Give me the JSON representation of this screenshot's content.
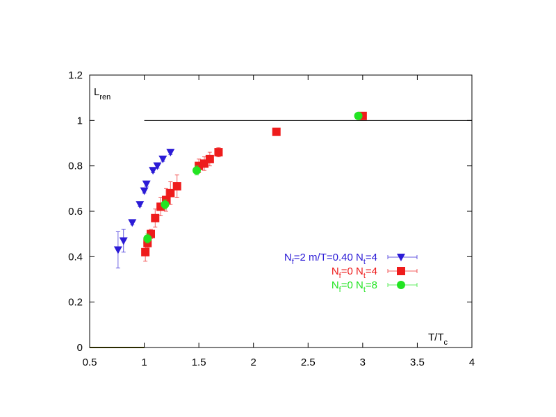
{
  "chart_data": {
    "type": "scatter",
    "xlabel": "T/T",
    "xlabel_sub": "c",
    "ylabel": "L",
    "ylabel_sub": "ren",
    "xlim": [
      0.5,
      4
    ],
    "ylim": [
      0,
      1.2
    ],
    "x_ticks": [
      "0.5",
      "1",
      "1.5",
      "2",
      "2.5",
      "3",
      "3.5",
      "4"
    ],
    "x_tick_values": [
      0.5,
      1,
      1.5,
      2,
      2.5,
      3,
      3.5,
      4
    ],
    "y_ticks": [
      "0",
      "0.2",
      "0.4",
      "0.6",
      "0.8",
      "1",
      "1.2"
    ],
    "y_tick_values": [
      0,
      0.2,
      0.4,
      0.6,
      0.8,
      1.0,
      1.2
    ],
    "reference_lines": [
      {
        "y": 1.0,
        "x_from": 1.0,
        "x_to": 4.0,
        "color": "#000000"
      },
      {
        "y": 0.0,
        "x_from": 0.5,
        "x_to": 1.0,
        "color": "#555500"
      }
    ],
    "legend_position": "center-right",
    "grid": false,
    "series": [
      {
        "legend_parts": [
          [
            "N",
            "f",
            "=2  m/T=0.40  N",
            "t",
            "=4"
          ]
        ],
        "color": "#2b1bd6",
        "marker": "triangle-down",
        "points": [
          {
            "x": 0.76,
            "y": 0.43,
            "err": 0.08
          },
          {
            "x": 0.81,
            "y": 0.47,
            "err": 0.05
          },
          {
            "x": 0.89,
            "y": 0.55,
            "err": 0.01
          },
          {
            "x": 0.96,
            "y": 0.63,
            "err": 0.01
          },
          {
            "x": 1.0,
            "y": 0.69,
            "err": 0.01
          },
          {
            "x": 1.02,
            "y": 0.72,
            "err": 0.01
          },
          {
            "x": 1.08,
            "y": 0.78,
            "err": 0.01
          },
          {
            "x": 1.12,
            "y": 0.8,
            "err": 0.01
          },
          {
            "x": 1.17,
            "y": 0.83,
            "err": 0.01
          },
          {
            "x": 1.24,
            "y": 0.86,
            "err": 0.01
          }
        ]
      },
      {
        "legend_parts": [
          [
            "N",
            "f",
            "=0  N",
            "t",
            "=4"
          ]
        ],
        "color": "#ee1c1c",
        "marker": "square",
        "points": [
          {
            "x": 1.01,
            "y": 0.42,
            "err": 0.04
          },
          {
            "x": 1.03,
            "y": 0.46,
            "err": 0.02
          },
          {
            "x": 1.06,
            "y": 0.5,
            "err": 0.02
          },
          {
            "x": 1.1,
            "y": 0.57,
            "err": 0.04
          },
          {
            "x": 1.15,
            "y": 0.62,
            "err": 0.04
          },
          {
            "x": 1.2,
            "y": 0.65,
            "err": 0.05
          },
          {
            "x": 1.24,
            "y": 0.68,
            "err": 0.05
          },
          {
            "x": 1.3,
            "y": 0.71,
            "err": 0.05
          },
          {
            "x": 1.5,
            "y": 0.8,
            "err": 0.03
          },
          {
            "x": 1.55,
            "y": 0.81,
            "err": 0.03
          },
          {
            "x": 1.6,
            "y": 0.83,
            "err": 0.03
          },
          {
            "x": 1.68,
            "y": 0.86,
            "err": 0.02
          },
          {
            "x": 2.21,
            "y": 0.95,
            "err": 0.01
          },
          {
            "x": 3.0,
            "y": 1.02,
            "err": 0.01
          }
        ]
      },
      {
        "legend_parts": [
          [
            "N",
            "f",
            "=0  N",
            "t",
            "=8"
          ]
        ],
        "color": "#22e422",
        "marker": "circle",
        "points": [
          {
            "x": 1.03,
            "y": 0.48,
            "err": 0.02
          },
          {
            "x": 1.19,
            "y": 0.63,
            "err": 0.02
          },
          {
            "x": 1.48,
            "y": 0.78,
            "err": 0.02
          },
          {
            "x": 2.96,
            "y": 1.02,
            "err": 0.01
          }
        ]
      }
    ]
  }
}
